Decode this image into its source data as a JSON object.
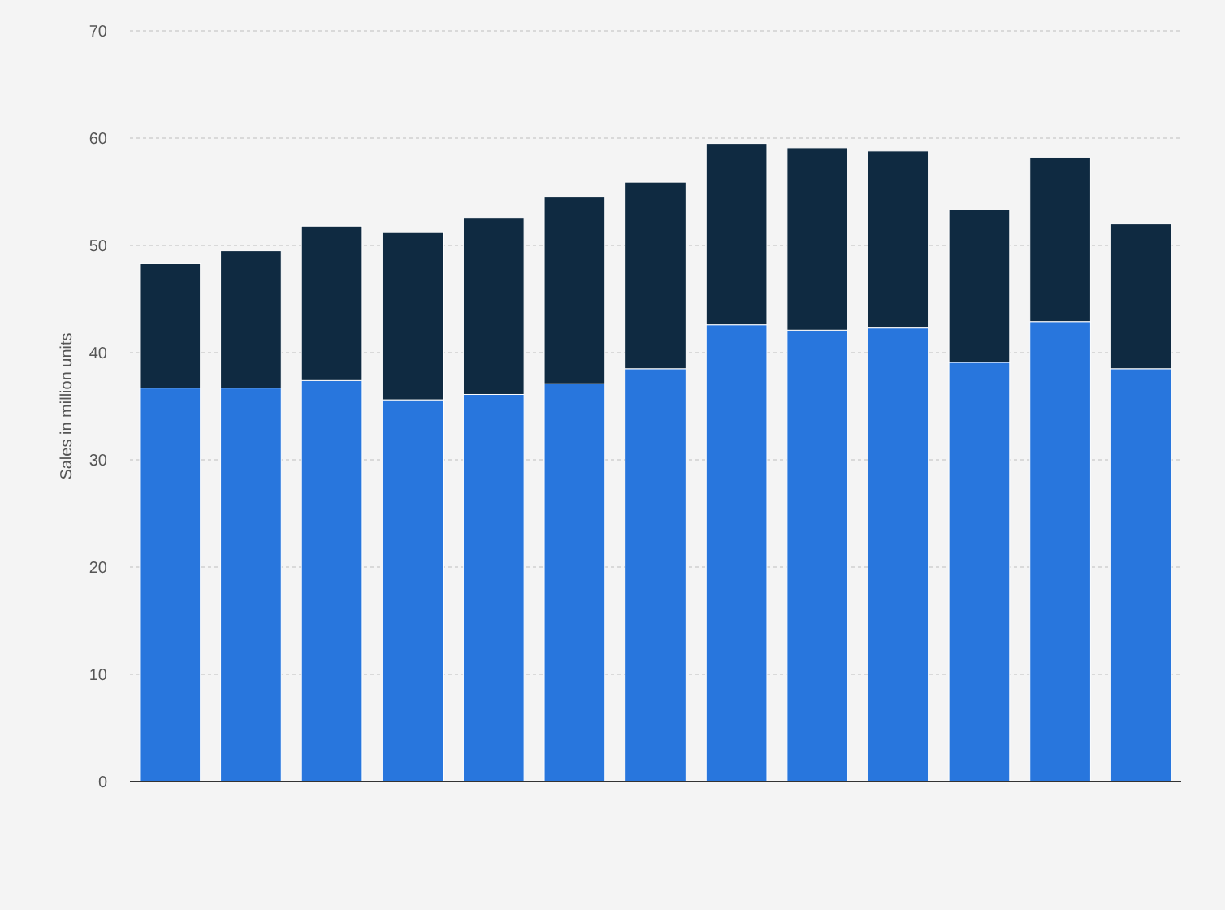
{
  "chart_data": {
    "type": "bar",
    "stacked": true,
    "ylabel": "Sales in million units",
    "categories": [
      null,
      null,
      null,
      null,
      null,
      null,
      null,
      null,
      null,
      null,
      null,
      null,
      null
    ],
    "series": [
      {
        "color": "#2876dd",
        "values": [
          36.7,
          36.7,
          37.4,
          35.6,
          36.1,
          37.1,
          38.5,
          42.6,
          42.1,
          42.3,
          39.1,
          42.9,
          38.5
        ]
      },
      {
        "color": "#0f2a41",
        "values": [
          11.6,
          12.8,
          14.4,
          15.6,
          16.5,
          17.4,
          17.4,
          16.9,
          17.0,
          16.5,
          14.2,
          15.3,
          13.5
        ]
      }
    ],
    "ylim": [
      0,
      70
    ],
    "yticks": [
      0,
      10,
      20,
      30,
      40,
      50,
      60,
      70
    ],
    "grid": "y"
  }
}
